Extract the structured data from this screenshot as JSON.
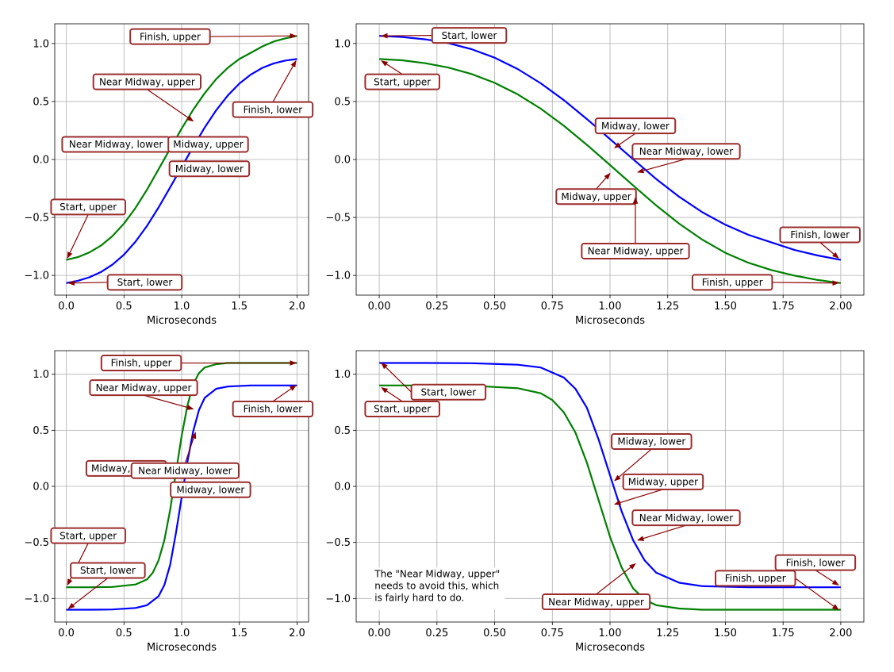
{
  "chart_data": [
    {
      "type": "line",
      "panel": "top-left",
      "xlabel": "Microseconds",
      "ylabel": "",
      "xlim": [
        -0.1,
        2.1
      ],
      "ylim": [
        -1.17,
        1.17
      ],
      "xticks": [
        "0.0",
        "0.5",
        "1.0",
        "1.5",
        "2.0"
      ],
      "yticks": [
        "−1.0",
        "−0.5",
        "0.0",
        "0.5",
        "1.0"
      ],
      "grid": true,
      "series": [
        {
          "color": "#0000ff",
          "x": [
            0,
            0.1,
            0.2,
            0.3,
            0.4,
            0.5,
            0.6,
            0.7,
            0.8,
            0.9,
            1.0,
            1.1,
            1.2,
            1.3,
            1.4,
            1.5,
            1.6,
            1.7,
            1.8,
            1.9,
            2.0
          ],
          "values": [
            -1.066,
            -1.046,
            -1.016,
            -0.971,
            -0.907,
            -0.821,
            -0.709,
            -0.572,
            -0.414,
            -0.241,
            -0.066,
            0.109,
            0.276,
            0.425,
            0.552,
            0.654,
            0.733,
            0.79,
            0.829,
            0.853,
            0.866
          ]
        },
        {
          "color": "#008000",
          "x": [
            0,
            0.1,
            0.2,
            0.3,
            0.4,
            0.5,
            0.6,
            0.7,
            0.8,
            0.9,
            1.0,
            1.1,
            1.2,
            1.3,
            1.4,
            1.5,
            1.6,
            1.7,
            1.8,
            1.9,
            2.0
          ],
          "values": [
            -0.866,
            -0.842,
            -0.802,
            -0.743,
            -0.661,
            -0.553,
            -0.418,
            -0.259,
            -0.084,
            0.093,
            0.266,
            0.428,
            0.572,
            0.694,
            0.791,
            0.866,
            0.92,
            0.975,
            1.018,
            1.045,
            1.066
          ]
        }
      ],
      "annotations": [
        "Finish, upper",
        "Near Midway, upper",
        "Finish, lower",
        "Near Midway, lower",
        "Midway, upper",
        "Midway, lower",
        "Start, upper",
        "Start, lower"
      ]
    },
    {
      "type": "line",
      "panel": "top-right",
      "xlabel": "Microseconds",
      "ylabel": "",
      "xlim": [
        -0.1,
        2.1
      ],
      "ylim": [
        -1.17,
        1.17
      ],
      "xticks": [
        "0.00",
        "0.25",
        "0.50",
        "0.75",
        "1.00",
        "1.25",
        "1.50",
        "1.75",
        "2.00"
      ],
      "yticks": [
        "−1.0",
        "−0.5",
        "0.0",
        "0.5",
        "1.0"
      ],
      "grid": true,
      "series": [
        {
          "color": "#0000ff",
          "x": [
            0,
            0.1,
            0.2,
            0.3,
            0.4,
            0.5,
            0.6,
            0.7,
            0.8,
            0.9,
            1.0,
            1.1,
            1.2,
            1.3,
            1.4,
            1.5,
            1.6,
            1.7,
            1.8,
            1.9,
            2.0
          ],
          "values": [
            1.066,
            1.056,
            1.036,
            1.003,
            0.951,
            0.878,
            0.78,
            0.657,
            0.512,
            0.348,
            0.176,
            0.002,
            -0.168,
            -0.322,
            -0.455,
            -0.563,
            -0.65,
            -0.716,
            -0.781,
            -0.828,
            -0.866
          ]
        },
        {
          "color": "#008000",
          "x": [
            0,
            0.1,
            0.2,
            0.3,
            0.4,
            0.5,
            0.6,
            0.7,
            0.8,
            0.9,
            1.0,
            1.1,
            1.2,
            1.3,
            1.4,
            1.5,
            1.6,
            1.7,
            1.8,
            1.9,
            2.0
          ],
          "values": [
            0.866,
            0.855,
            0.83,
            0.792,
            0.737,
            0.661,
            0.562,
            0.438,
            0.291,
            0.126,
            -0.048,
            -0.224,
            -0.396,
            -0.554,
            -0.692,
            -0.805,
            -0.891,
            -0.954,
            -1.002,
            -1.039,
            -1.066
          ]
        }
      ],
      "annotations": [
        "Start, lower",
        "Start, upper",
        "Midway, lower",
        "Near Midway, lower",
        "Midway, upper",
        "Near Midway, upper",
        "Finish, lower",
        "Finish, upper"
      ]
    },
    {
      "type": "line",
      "panel": "bottom-left",
      "xlabel": "Microseconds",
      "ylabel": "",
      "xlim": [
        -0.1,
        2.1
      ],
      "ylim": [
        -1.21,
        1.21
      ],
      "xticks": [
        "0.0",
        "0.5",
        "1.0",
        "1.5",
        "2.0"
      ],
      "yticks": [
        "−1.0",
        "−0.5",
        "0.0",
        "0.5",
        "1.0"
      ],
      "grid": true,
      "series": [
        {
          "color": "#0000ff",
          "x": [
            0,
            0.2,
            0.4,
            0.6,
            0.7,
            0.8,
            0.85,
            0.9,
            0.95,
            1.0,
            1.05,
            1.1,
            1.15,
            1.2,
            1.3,
            1.4,
            1.6,
            1.8,
            2.0
          ],
          "values": [
            -1.1,
            -1.1,
            -1.098,
            -1.085,
            -1.06,
            -0.98,
            -0.88,
            -0.7,
            -0.42,
            -0.1,
            0.22,
            0.49,
            0.68,
            0.79,
            0.87,
            0.89,
            0.9,
            0.9,
            0.9
          ]
        },
        {
          "color": "#008000",
          "x": [
            0,
            0.2,
            0.4,
            0.6,
            0.7,
            0.75,
            0.8,
            0.85,
            0.9,
            0.95,
            1.0,
            1.05,
            1.1,
            1.15,
            1.2,
            1.3,
            1.4,
            1.6,
            1.8,
            2.0
          ],
          "values": [
            -0.9,
            -0.9,
            -0.897,
            -0.875,
            -0.83,
            -0.77,
            -0.66,
            -0.48,
            -0.21,
            0.12,
            0.45,
            0.72,
            0.91,
            1.01,
            1.06,
            1.09,
            1.1,
            1.1,
            1.1,
            1.1
          ]
        }
      ],
      "annotations": [
        "Finish, upper",
        "Near Midway, upper",
        "Finish, lower",
        "Midway, upper",
        "Near Midway, lower",
        "Midway, lower",
        "Start, upper",
        "Start, lower"
      ]
    },
    {
      "type": "line",
      "panel": "bottom-right",
      "xlabel": "Microseconds",
      "ylabel": "",
      "xlim": [
        -0.1,
        2.1
      ],
      "ylim": [
        -1.21,
        1.21
      ],
      "xticks": [
        "0.00",
        "0.25",
        "0.50",
        "0.75",
        "1.00",
        "1.25",
        "1.50",
        "1.75",
        "2.00"
      ],
      "yticks": [
        "−1.0",
        "−0.5",
        "0.0",
        "0.5",
        "1.0"
      ],
      "grid": true,
      "series": [
        {
          "color": "#0000ff",
          "x": [
            0,
            0.2,
            0.4,
            0.6,
            0.7,
            0.8,
            0.85,
            0.9,
            0.95,
            1.0,
            1.05,
            1.1,
            1.15,
            1.2,
            1.3,
            1.4,
            1.6,
            1.8,
            2.0
          ],
          "values": [
            1.1,
            1.1,
            1.098,
            1.085,
            1.06,
            0.97,
            0.87,
            0.7,
            0.42,
            0.1,
            -0.22,
            -0.48,
            -0.66,
            -0.77,
            -0.86,
            -0.89,
            -0.9,
            -0.9,
            -0.9
          ]
        },
        {
          "color": "#008000",
          "x": [
            0,
            0.2,
            0.4,
            0.6,
            0.7,
            0.75,
            0.8,
            0.85,
            0.9,
            0.95,
            1.0,
            1.05,
            1.1,
            1.15,
            1.2,
            1.3,
            1.4,
            1.6,
            1.8,
            2.0
          ],
          "values": [
            0.9,
            0.9,
            0.897,
            0.875,
            0.83,
            0.77,
            0.66,
            0.48,
            0.21,
            -0.12,
            -0.45,
            -0.72,
            -0.91,
            -1.01,
            -1.06,
            -1.09,
            -1.1,
            -1.1,
            -1.1,
            -1.1
          ]
        }
      ],
      "annotations": [
        "Start, lower",
        "Start, upper",
        "Midway, lower",
        "Midway, upper",
        "Near Midway, lower",
        "Finish, lower",
        "Finish, upper",
        "Near Midway, upper"
      ],
      "note": "The \"Near Midway, upper\"\nneeds to avoid this, which\nis fairly hard to do."
    }
  ]
}
